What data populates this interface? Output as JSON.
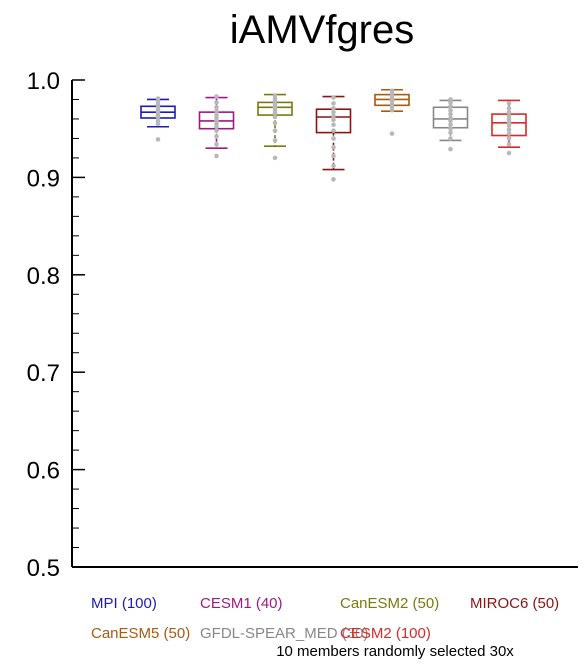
{
  "chart_data": {
    "type": "box",
    "title": "iAMVfgres",
    "xlabel": "",
    "ylabel": "",
    "ylim": [
      0.5,
      1.0
    ],
    "yticks": [
      "0.5",
      "0.6",
      "0.7",
      "0.8",
      "0.9",
      "1.0"
    ],
    "grid": false,
    "legend_position": "bottom",
    "note": "10 members randomly selected 30x",
    "series": [
      {
        "name": "MPI (100)",
        "color": "#1c1cb4",
        "whisker_low": 0.952,
        "q1": 0.961,
        "median": 0.967,
        "q3": 0.973,
        "whisker_high": 0.98,
        "points": [
          0.939,
          0.955,
          0.958,
          0.962,
          0.964,
          0.966,
          0.968,
          0.97,
          0.972,
          0.975,
          0.978,
          0.981
        ]
      },
      {
        "name": "CESM1 (40)",
        "color": "#9e1a82",
        "whisker_low": 0.93,
        "q1": 0.95,
        "median": 0.958,
        "q3": 0.967,
        "whisker_high": 0.982,
        "points": [
          0.922,
          0.934,
          0.942,
          0.948,
          0.952,
          0.955,
          0.958,
          0.961,
          0.964,
          0.968,
          0.972,
          0.977,
          0.983
        ]
      },
      {
        "name": "CanESM2 (50)",
        "color": "#7a7a0e",
        "whisker_low": 0.932,
        "q1": 0.964,
        "median": 0.972,
        "q3": 0.977,
        "whisker_high": 0.985,
        "points": [
          0.92,
          0.938,
          0.948,
          0.956,
          0.962,
          0.966,
          0.969,
          0.972,
          0.975,
          0.978,
          0.981,
          0.984
        ]
      },
      {
        "name": "MIROC6 (50)",
        "color": "#8a1414",
        "whisker_low": 0.908,
        "q1": 0.946,
        "median": 0.962,
        "q3": 0.97,
        "whisker_high": 0.983,
        "points": [
          0.898,
          0.912,
          0.922,
          0.931,
          0.94,
          0.948,
          0.954,
          0.959,
          0.963,
          0.967,
          0.971,
          0.976,
          0.982
        ]
      },
      {
        "name": "CanESM5 (50)",
        "color": "#a85a12",
        "whisker_low": 0.968,
        "q1": 0.974,
        "median": 0.98,
        "q3": 0.985,
        "whisker_high": 0.99,
        "points": [
          0.945,
          0.969,
          0.972,
          0.975,
          0.978,
          0.98,
          0.983,
          0.986,
          0.989
        ]
      },
      {
        "name": "GFDL-SPEAR_MED (30)",
        "color": "#888888",
        "whisker_low": 0.938,
        "q1": 0.951,
        "median": 0.96,
        "q3": 0.972,
        "whisker_high": 0.979,
        "points": [
          0.929,
          0.94,
          0.946,
          0.95,
          0.954,
          0.958,
          0.961,
          0.965,
          0.969,
          0.973,
          0.977,
          0.98
        ]
      },
      {
        "name": "CESM2 (100)",
        "color": "#d62a2a",
        "whisker_low": 0.931,
        "q1": 0.943,
        "median": 0.956,
        "q3": 0.965,
        "whisker_high": 0.979,
        "points": [
          0.925,
          0.934,
          0.94,
          0.945,
          0.949,
          0.953,
          0.957,
          0.96,
          0.963,
          0.967,
          0.971,
          0.976
        ]
      }
    ],
    "point_color": "#b8b8b8"
  }
}
